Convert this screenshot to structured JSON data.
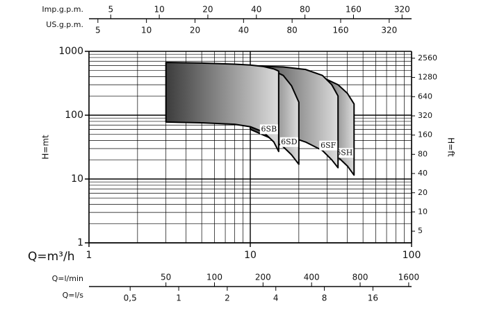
{
  "chart_data": {
    "type": "area",
    "xlabel": "Q=m³/h",
    "ylabel": "H=mt",
    "y2label": "H=ft",
    "xscale": "log",
    "yscale": "log",
    "xlim": [
      1,
      100
    ],
    "xticks": [
      1,
      10,
      100
    ],
    "ylim": [
      1,
      1000
    ],
    "yticks": [
      1,
      10,
      100,
      1000
    ],
    "xgrid": [
      2,
      3,
      4,
      5,
      6,
      7,
      8,
      9,
      20,
      30,
      40,
      50,
      60,
      70,
      80,
      90
    ],
    "ygrid": [
      2,
      3,
      4,
      5,
      6,
      7,
      8,
      9,
      20,
      30,
      40,
      50,
      60,
      70,
      80,
      90,
      200,
      300,
      400,
      500,
      600,
      700,
      800,
      900
    ],
    "y2lim": [
      3.28,
      3280
    ],
    "y2ticks": [
      5,
      10,
      20,
      40,
      80,
      160,
      320,
      640,
      1280,
      2560
    ],
    "top_axes": [
      {
        "label": "Imp.g.p.m.",
        "lim": [
          3.666,
          366.6
        ],
        "ticks": [
          5,
          10,
          20,
          40,
          80,
          160,
          320
        ]
      },
      {
        "label": "US.g.p.m.",
        "lim": [
          4.403,
          440.3
        ],
        "ticks": [
          5,
          10,
          20,
          40,
          80,
          160,
          320
        ]
      }
    ],
    "bottom_axes": [
      {
        "label": "Q=l/min",
        "lim": [
          16.67,
          1667
        ],
        "ticks": [
          50,
          100,
          200,
          400,
          800,
          1600
        ]
      },
      {
        "label": "Q=l/s",
        "lim": [
          0.2778,
          27.78
        ],
        "ticks": [
          {
            "value": 0.5,
            "label": "0,5"
          },
          1,
          2,
          4,
          8,
          16
        ]
      }
    ],
    "series": [
      {
        "name": "6SH",
        "color": [
          "#3c3c3c",
          "#dcdcdc"
        ],
        "x": [
          25,
          30,
          35,
          40,
          44
        ],
        "upper": [
          420,
          360,
          300,
          220,
          150
        ],
        "lower": [
          40,
          30,
          22,
          16,
          11.5
        ]
      },
      {
        "name": "6SF",
        "color": [
          "#3c3c3c",
          "#dcdcdc"
        ],
        "x": [
          10,
          16,
          22,
          28,
          32,
          35
        ],
        "upper": [
          590,
          570,
          520,
          420,
          300,
          200
        ],
        "lower": [
          70,
          50,
          38,
          28,
          20,
          15
        ]
      },
      {
        "name": "6SD",
        "color": [
          "#3c3c3c",
          "#dcdcdc"
        ],
        "x": [
          10,
          13,
          16,
          18,
          20
        ],
        "upper": [
          600,
          540,
          420,
          290,
          160
        ],
        "lower": [
          60,
          45,
          32,
          24,
          17
        ]
      },
      {
        "name": "6SB",
        "color": [
          "#3c3c3c",
          "#dcdcdc"
        ],
        "x": [
          3,
          5,
          8,
          10,
          12,
          14,
          15
        ],
        "upper": [
          670,
          655,
          630,
          610,
          580,
          530,
          490
        ],
        "lower": [
          78,
          76,
          72,
          66,
          55,
          38,
          27
        ]
      }
    ]
  }
}
